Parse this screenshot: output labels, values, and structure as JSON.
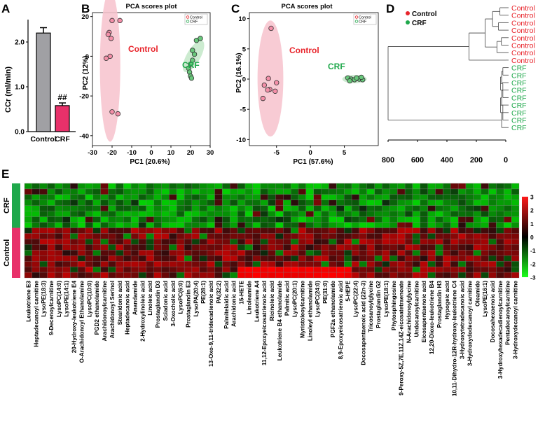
{
  "panels": {
    "A": "A",
    "B": "B",
    "C": "C",
    "D": "D",
    "E": "E"
  },
  "colors": {
    "control_red": "#e8242b",
    "crf_green": "#1fa84b",
    "control_bar": "#a0a0a4",
    "crf_bar": "#e8316a",
    "ellipse_pink": "#f7c2cc",
    "ellipse_green": "#c3e8c8"
  },
  "chart_data": [
    {
      "id": "A",
      "type": "bar",
      "title": "",
      "ylabel": "CCr (ml/min)",
      "categories": [
        "Control",
        "CRF"
      ],
      "values": [
        2.2,
        0.58
      ],
      "errors": [
        0.12,
        0.06
      ],
      "ylim": [
        0,
        2.5
      ],
      "yticks": [
        "0.0",
        "1.0",
        "2.0"
      ],
      "annotation": "##"
    },
    {
      "id": "B",
      "type": "scatter",
      "title": "PCA scores plot",
      "xlabel": "PC1 (20.6%)",
      "ylabel": "PC2  (12%)",
      "xlim": [
        -30,
        30
      ],
      "ylim": [
        -45,
        22
      ],
      "xticks": [
        "-30",
        "-20",
        "-10",
        "0",
        "10",
        "20",
        "30"
      ],
      "yticks": [
        "-40",
        "-20",
        "0",
        "20"
      ],
      "legend": [
        "Control",
        "CRF"
      ],
      "group_labels": [
        "Control",
        "CRF"
      ],
      "series": [
        {
          "name": "Control",
          "points": [
            [
              -20,
              18
            ],
            [
              -21.5,
              12
            ],
            [
              -20.5,
              9
            ],
            [
              -22,
              11
            ],
            [
              -21,
              0
            ],
            [
              -23,
              -1
            ],
            [
              -20,
              -28
            ],
            [
              -17,
              -29
            ],
            [
              -16,
              18
            ]
          ]
        },
        {
          "name": "CRF",
          "points": [
            [
              21,
              3
            ],
            [
              22,
              1
            ],
            [
              21,
              -2
            ],
            [
              20,
              -4
            ],
            [
              19,
              -6
            ],
            [
              19.5,
              -8
            ],
            [
              23,
              8
            ],
            [
              25,
              9
            ],
            [
              20,
              -10
            ],
            [
              20.5,
              -11
            ]
          ]
        }
      ]
    },
    {
      "id": "C",
      "type": "scatter",
      "title": "PCA scores plot",
      "xlabel": "PC1 (57.6%)",
      "ylabel": "PC2  (16.1%)",
      "xlim": [
        -9,
        10
      ],
      "ylim": [
        -11,
        11
      ],
      "xticks": [
        "-5",
        "0",
        "5"
      ],
      "yticks": [
        "-10",
        "-5",
        "0",
        "5",
        "10"
      ],
      "legend": [
        "Control",
        "CRF"
      ],
      "group_labels": [
        "Control",
        "CRF"
      ],
      "series": [
        {
          "name": "Control",
          "points": [
            [
              -5.8,
              8.4
            ],
            [
              -6.8,
              -1.0
            ],
            [
              -7.0,
              -3.2
            ],
            [
              -6.0,
              -1.7
            ],
            [
              -5.2,
              -2.0
            ],
            [
              -6.2,
              0.1
            ],
            [
              -5.0,
              -0.6
            ],
            [
              -6.3,
              -1.8
            ]
          ]
        },
        {
          "name": "CRF",
          "points": [
            [
              5.5,
              0.2
            ],
            [
              6.0,
              0.0
            ],
            [
              6.5,
              -0.1
            ],
            [
              7.2,
              0.0
            ],
            [
              7.7,
              -0.1
            ],
            [
              5.8,
              -0.3
            ],
            [
              6.8,
              0.2
            ],
            [
              7.5,
              0.3
            ]
          ]
        }
      ]
    },
    {
      "id": "D",
      "type": "dendrogram",
      "legend": [
        "Control",
        "CRF"
      ],
      "xticks": [
        "800",
        "600",
        "400",
        "200",
        "0"
      ],
      "xlim": [
        800,
        0
      ],
      "leaves": [
        "Control",
        "Control",
        "Control",
        "Control",
        "Control",
        "Control",
        "Control",
        "Control",
        "CRF",
        "CRF",
        "CRF",
        "CRF",
        "CRF",
        "CRF",
        "CRF",
        "CRF",
        "CRF"
      ]
    },
    {
      "id": "E",
      "type": "heatmap",
      "row_groups": [
        {
          "name": "CRF",
          "rows": 8
        },
        {
          "name": "Control",
          "rows": 9
        }
      ],
      "colorbar": {
        "min": -3,
        "max": 3,
        "ticks": [
          "3",
          "2",
          "1",
          "0",
          "-1",
          "-2",
          "-3"
        ]
      },
      "columns": [
        "Leukotriene E3",
        "Heptadecanoyl carnitine",
        "LysoPE(18:3)",
        "9-Decenoylcarnitine",
        "LysoPC(14:0)",
        "LysoPE(14:1)",
        "20-Hydroxy-leukotriene E4",
        "O-Arachidonoyl Ethanolamine",
        "LysoPC(10:0)",
        "PGD2 ethanolamide",
        "Arachidonoylcarnitine",
        "Arachidonoyl Serinol",
        "Stearidonic acid",
        "Heptadecanoic acid",
        "Anandamide",
        "2-Hydroxylinoleic acid",
        "Linoleic acid",
        "Prostaglandin D3",
        "Sciadonic acid",
        "3-Oxocholic acid",
        "LysoPC(6:0)",
        "Prostaglandin E3",
        "LysoPA(20:4)",
        "PE(28:1)",
        "13-Oxo-9,11-tridecadienoic acid",
        "PA(32:2)",
        "Palmitelaidic acid",
        "Arachidonic acid",
        "15-HETE",
        "Linoleamide",
        "Leukotriene A4",
        "11,12-Epoxyeicosatrienoic acid",
        "Ricinoleic acid",
        "Leukotriene B4 ethanolamide",
        "Palmitic acid",
        "LysoPC(20:1)",
        "Myristoleoylcarnitine",
        "Linoleyl ethanolamide",
        "LysoPC(24:0)",
        "PE(31:0)",
        "PGF2a ethanolamide",
        "8,9-Epoxyeicosatrienoic acid",
        "5-HEPE",
        "LysoPC(22:4)",
        "Docosapentaenoic acid (22n-3)",
        "Tricosanoylglycine",
        "Prostaglandin G2",
        "LysoPE(18:1)",
        "Phytosphingosine",
        "9-Peroxy-5Z,7E,11Z,14Z-eicosatetraenoate",
        "N-Arachidonoylglycine",
        "Undecanoylcarnitine",
        "Eicosapentaenoic acid",
        "12,20-Dioxo-leukotriene B4",
        "Prostaglandin H3",
        "Hypogeic acid",
        "10,11-Dihydro-12R-hydroxy-leukotriene C4",
        "3-Hydroxytetradecanoic acid",
        "3-Hydroxydodecanoyl carnitine",
        "Oleamide",
        "LysoPE(16:1)",
        "Docosahexaenoic acid",
        "3-Hydroxyhexadecadienoylcarnitine",
        "Pentadecanoylcarnitine",
        "3-Hydroxydecanoyl carnitine"
      ]
    }
  ]
}
